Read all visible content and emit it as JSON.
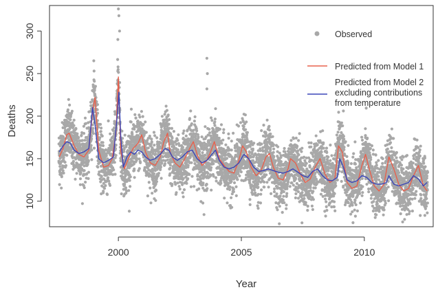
{
  "chart_data": {
    "type": "scatter+line",
    "title": "",
    "xlabel": "Year",
    "ylabel": "Deaths",
    "xlim": [
      1997.2,
      2012.8
    ],
    "ylim": [
      70,
      330
    ],
    "x_ticks": [
      2000,
      2005,
      2010
    ],
    "y_ticks": [
      100,
      150,
      200,
      250,
      300
    ],
    "grid": false,
    "legend_position": "top-right",
    "legend": [
      {
        "label": "Observed",
        "marker": "point",
        "color": "#a8a8a8"
      },
      {
        "label": "Predicted from Model 1",
        "marker": "line",
        "color": "#e8604c"
      },
      {
        "label": "Predicted from Model 2 excluding contributions from temperature",
        "marker": "line",
        "color": "#3a45b8"
      }
    ],
    "observed_daily": {
      "x_range": [
        1997.58,
        2012.58
      ],
      "baseline_start": 160,
      "baseline_end": 118,
      "seasonal_amplitude": 14,
      "noise_sd": 16,
      "outliers": [
        {
          "x": 1999.0,
          "y": 265
        },
        {
          "x": 2000.0,
          "y": 326
        },
        {
          "x": 2000.02,
          "y": 318
        },
        {
          "x": 2000.05,
          "y": 300
        },
        {
          "x": 1999.98,
          "y": 290
        },
        {
          "x": 2003.6,
          "y": 268
        },
        {
          "x": 2003.62,
          "y": 250
        },
        {
          "x": 2003.6,
          "y": 232
        }
      ]
    },
    "series": [
      {
        "name": "Predicted from Model 1",
        "color": "#e8604c",
        "x": [
          1997.6,
          1997.75,
          1997.9,
          1998.0,
          1998.2,
          1998.4,
          1998.6,
          1998.8,
          1998.95,
          1999.05,
          1999.2,
          1999.4,
          1999.6,
          1999.75,
          1999.9,
          2000.0,
          2000.1,
          2000.25,
          2000.4,
          2000.6,
          2000.8,
          2000.95,
          2001.1,
          2001.3,
          2001.5,
          2001.7,
          2001.85,
          2002.0,
          2002.1,
          2002.3,
          2002.5,
          2002.7,
          2002.9,
          2003.05,
          2003.2,
          2003.4,
          2003.6,
          2003.75,
          2003.9,
          2004.1,
          2004.3,
          2004.5,
          2004.7,
          2004.9,
          2005.05,
          2005.2,
          2005.4,
          2005.6,
          2005.8,
          2006.0,
          2006.15,
          2006.3,
          2006.5,
          2006.7,
          2006.9,
          2007.0,
          2007.2,
          2007.4,
          2007.6,
          2007.8,
          2008.0,
          2008.2,
          2008.4,
          2008.6,
          2008.8,
          2008.95,
          2009.1,
          2009.3,
          2009.5,
          2009.7,
          2009.9,
          2010.05,
          2010.2,
          2010.4,
          2010.6,
          2010.8,
          2011.0,
          2011.2,
          2011.4,
          2011.6,
          2011.8,
          2012.0,
          2012.2,
          2012.4,
          2012.55
        ],
        "values": [
          152,
          162,
          178,
          180,
          165,
          155,
          152,
          160,
          205,
          222,
          160,
          140,
          142,
          150,
          180,
          246,
          158,
          138,
          150,
          162,
          168,
          178,
          158,
          145,
          142,
          152,
          170,
          180,
          158,
          145,
          140,
          150,
          162,
          170,
          155,
          142,
          148,
          158,
          170,
          150,
          142,
          135,
          133,
          148,
          165,
          158,
          140,
          130,
          136,
          152,
          156,
          140,
          127,
          125,
          138,
          150,
          145,
          132,
          122,
          126,
          140,
          150,
          132,
          122,
          126,
          165,
          158,
          122,
          115,
          118,
          142,
          155,
          138,
          118,
          112,
          120,
          152,
          138,
          120,
          112,
          115,
          130,
          142,
          118,
          112
        ]
      },
      {
        "name": "Predicted from Model 2 excluding contributions from temperature",
        "color": "#3a45b8",
        "x": [
          1997.6,
          1997.75,
          1997.9,
          1998.05,
          1998.2,
          1998.4,
          1998.6,
          1998.8,
          1998.95,
          1999.05,
          1999.2,
          1999.4,
          1999.6,
          1999.8,
          1999.95,
          2000.02,
          2000.1,
          2000.2,
          2000.35,
          2000.5,
          2000.65,
          2000.8,
          2000.95,
          2001.1,
          2001.3,
          2001.5,
          2001.7,
          2001.9,
          2002.05,
          2002.2,
          2002.4,
          2002.6,
          2002.8,
          2003.0,
          2003.2,
          2003.4,
          2003.6,
          2003.8,
          2003.95,
          2004.1,
          2004.3,
          2004.5,
          2004.7,
          2004.9,
          2005.1,
          2005.3,
          2005.5,
          2005.7,
          2005.9,
          2006.1,
          2006.3,
          2006.5,
          2006.7,
          2006.9,
          2007.1,
          2007.3,
          2007.5,
          2007.7,
          2007.9,
          2008.1,
          2008.3,
          2008.5,
          2008.7,
          2008.9,
          2009.0,
          2009.15,
          2009.3,
          2009.5,
          2009.7,
          2009.9,
          2010.1,
          2010.3,
          2010.5,
          2010.7,
          2010.9,
          2011.0,
          2011.2,
          2011.4,
          2011.6,
          2011.8,
          2012.0,
          2012.2,
          2012.4,
          2012.55
        ],
        "values": [
          158,
          165,
          170,
          168,
          160,
          156,
          158,
          162,
          210,
          190,
          150,
          145,
          148,
          152,
          200,
          228,
          175,
          140,
          152,
          158,
          155,
          160,
          158,
          152,
          148,
          150,
          155,
          162,
          160,
          152,
          148,
          152,
          158,
          160,
          150,
          145,
          148,
          155,
          160,
          148,
          140,
          138,
          140,
          145,
          155,
          150,
          140,
          135,
          136,
          138,
          136,
          134,
          133,
          135,
          138,
          134,
          130,
          128,
          135,
          138,
          130,
          125,
          124,
          128,
          150,
          140,
          125,
          122,
          124,
          130,
          128,
          122,
          120,
          120,
          122,
          130,
          120,
          118,
          120,
          122,
          130,
          126,
          118,
          122
        ]
      }
    ]
  }
}
